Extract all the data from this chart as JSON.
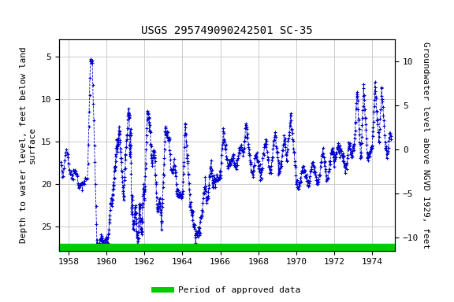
{
  "title": "USGS 295749090242501 SC-35",
  "ylabel_left": "Depth to water level, feet below land\nsurface",
  "ylabel_right": "Groundwater level above NGVD 1929, feet",
  "xlim": [
    1957.5,
    1975.2
  ],
  "ylim_left": [
    27.8,
    3.0
  ],
  "ylim_right": [
    -11.5,
    12.5
  ],
  "xticks": [
    1958,
    1960,
    1962,
    1964,
    1966,
    1968,
    1970,
    1972,
    1974
  ],
  "yticks_left": [
    5,
    10,
    15,
    20,
    25
  ],
  "yticks_right": [
    10,
    5,
    0,
    -5,
    -10
  ],
  "grid_color": "#cccccc",
  "data_color": "#0000cc",
  "background_color": "#ffffff",
  "legend_label": "Period of approved data",
  "legend_color": "#00cc00",
  "title_fontsize": 10,
  "axis_fontsize": 8,
  "tick_fontsize": 8,
  "font_family": "monospace",
  "green_bar_y": 27.4,
  "green_bar_height": 0.8
}
